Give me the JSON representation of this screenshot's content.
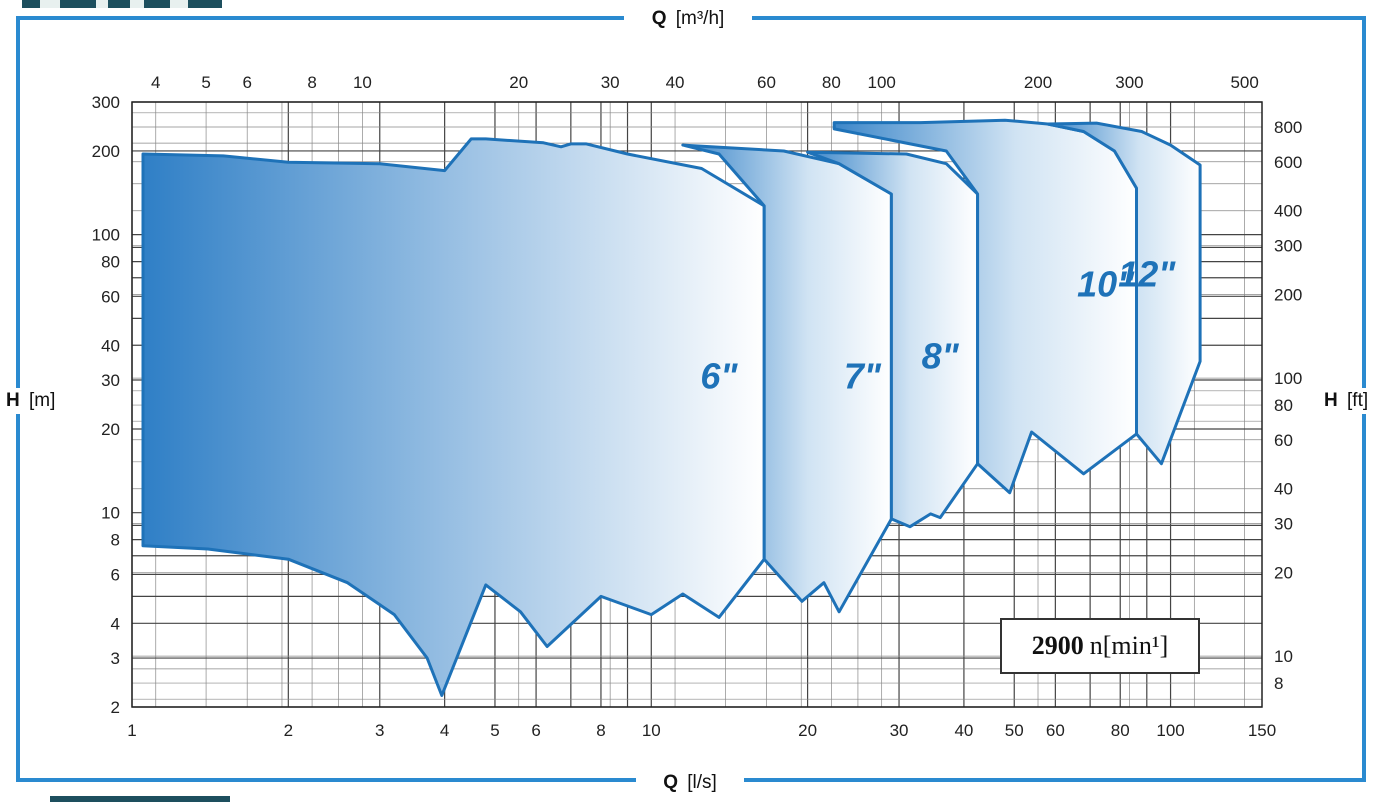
{
  "chart_data": {
    "type": "area",
    "title": "",
    "x_bottom": {
      "label_main": "Q",
      "label_unit": "[l/s]",
      "scale": "log",
      "range": [
        1,
        150
      ],
      "ticks": [
        1,
        2,
        3,
        4,
        5,
        6,
        8,
        10,
        20,
        30,
        40,
        50,
        60,
        80,
        100,
        150
      ]
    },
    "x_top": {
      "label_main": "Q",
      "label_unit": "[m³/h]",
      "scale": "log",
      "ticks": [
        4,
        5,
        6,
        8,
        10,
        20,
        30,
        40,
        60,
        80,
        100,
        200,
        300,
        500
      ]
    },
    "y_left": {
      "label_main": "H",
      "label_unit": "[m]",
      "scale": "log",
      "range": [
        2,
        300
      ],
      "ticks": [
        2,
        3,
        4,
        6,
        8,
        10,
        20,
        30,
        40,
        60,
        80,
        100,
        200,
        300
      ]
    },
    "y_right": {
      "label_main": "H",
      "label_unit": "[ft]",
      "scale": "log",
      "ticks": [
        8,
        10,
        20,
        30,
        40,
        60,
        80,
        100,
        200,
        300,
        400,
        600,
        800
      ]
    },
    "grid": true,
    "series": [
      {
        "name": "6\"",
        "label_at": [
          13.5,
          28
        ],
        "boundary": [
          [
            1.05,
            7.6
          ],
          [
            1.4,
            7.4
          ],
          [
            2,
            6.8
          ],
          [
            2.6,
            5.6
          ],
          [
            3.2,
            4.3
          ],
          [
            3.7,
            3.0
          ],
          [
            3.95,
            2.2
          ],
          [
            4.8,
            5.5
          ],
          [
            5.6,
            4.4
          ],
          [
            6.3,
            3.3
          ],
          [
            8.0,
            5.0
          ],
          [
            10.0,
            4.3
          ],
          [
            11.5,
            5.1
          ],
          [
            13.5,
            4.2
          ],
          [
            16.5,
            6.8
          ],
          [
            16.5,
            127
          ],
          [
            12.5,
            173
          ],
          [
            9.0,
            195
          ],
          [
            7.5,
            212
          ],
          [
            7.0,
            212
          ],
          [
            6.7,
            207
          ],
          [
            6.2,
            214
          ],
          [
            4.8,
            221
          ],
          [
            4.5,
            221
          ],
          [
            4.0,
            170
          ],
          [
            3.0,
            180
          ],
          [
            2.0,
            182
          ],
          [
            1.5,
            192
          ],
          [
            1.05,
            195
          ]
        ]
      },
      {
        "name": "7\"",
        "label_at": [
          25.5,
          28
        ],
        "boundary": [
          [
            16.5,
            6.8
          ],
          [
            19.5,
            4.8
          ],
          [
            21.5,
            5.6
          ],
          [
            23,
            4.4
          ],
          [
            29,
            9.5
          ],
          [
            29,
            140
          ],
          [
            23,
            180
          ],
          [
            18,
            200
          ],
          [
            11.5,
            210
          ],
          [
            13.5,
            195
          ],
          [
            16.5,
            127
          ]
        ]
      },
      {
        "name": "8\"",
        "label_at": [
          36,
          33
        ],
        "boundary": [
          [
            29,
            9.5
          ],
          [
            31.5,
            8.9
          ],
          [
            34.5,
            9.9
          ],
          [
            36,
            9.6
          ],
          [
            42.5,
            15
          ],
          [
            42.5,
            140
          ],
          [
            37,
            180
          ],
          [
            31,
            195
          ],
          [
            20,
            198
          ],
          [
            23,
            180
          ],
          [
            29,
            140
          ]
        ]
      },
      {
        "name": "10\"",
        "label_at": [
          75,
          60
        ],
        "boundary": [
          [
            42.5,
            15
          ],
          [
            49,
            11.8
          ],
          [
            54,
            19.5
          ],
          [
            68,
            13.8
          ],
          [
            86,
            19.2
          ],
          [
            86,
            147
          ],
          [
            78,
            200
          ],
          [
            68,
            235
          ],
          [
            58,
            250
          ],
          [
            48,
            258
          ],
          [
            33,
            253
          ],
          [
            22.5,
            253
          ],
          [
            22.5,
            240
          ],
          [
            37,
            200
          ],
          [
            42.5,
            140
          ]
        ]
      },
      {
        "name": "12\"",
        "label_at": [
          90,
          65
        ],
        "boundary": [
          [
            86,
            19.2
          ],
          [
            96,
            15
          ],
          [
            114,
            35
          ],
          [
            114,
            178
          ],
          [
            100,
            210
          ],
          [
            88,
            235
          ],
          [
            72,
            252
          ],
          [
            58,
            250
          ],
          [
            68,
            235
          ],
          [
            78,
            200
          ],
          [
            86,
            147
          ]
        ]
      }
    ],
    "annotation": {
      "value": "2900",
      "unit": "n[min¹]"
    },
    "colors": {
      "curve": "#1e72b8",
      "fill_dark": "#2f7fc6",
      "fill_light": "#ffffff",
      "grid": "#555555",
      "frame": "#2a8ad0"
    }
  }
}
